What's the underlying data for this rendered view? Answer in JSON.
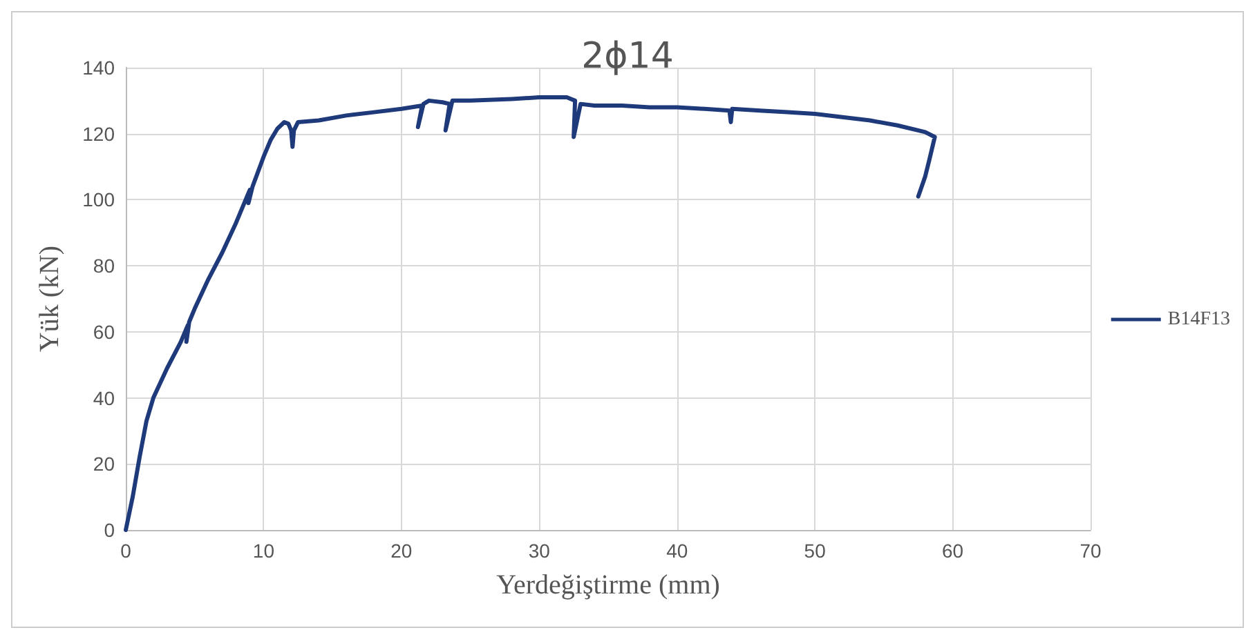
{
  "chart_data": {
    "type": "line",
    "title": "2ϕ14",
    "xlabel": "Yerdeğiştirme (mm)",
    "ylabel": "Yük (kN)",
    "xlim": [
      0,
      70
    ],
    "xticks": [
      0,
      10,
      20,
      30,
      40,
      50,
      60,
      70
    ],
    "ylim": [
      0,
      140
    ],
    "yticks": [
      0,
      20,
      40,
      60,
      80,
      100,
      120,
      140
    ],
    "grid": true,
    "legend": "right",
    "marker": "none",
    "line_style": "solid",
    "series": [
      {
        "name": "B14F13",
        "color": "#1f3a7a",
        "x": [
          0,
          0.5,
          1,
          1.5,
          2,
          3,
          4,
          4.5,
          4.4,
          4.6,
          5,
          6,
          7,
          8,
          9,
          8.9,
          9.2,
          10,
          10.5,
          11,
          11.5,
          11.8,
          12,
          12.1,
          12.2,
          12.5,
          14,
          16,
          18,
          20,
          21.5,
          21.2,
          21.6,
          22,
          23,
          23.5,
          23.2,
          23.7,
          25,
          28,
          30,
          32,
          32.6,
          32.5,
          33,
          34,
          36,
          38,
          40,
          42,
          43.8,
          43.9,
          44,
          46,
          48,
          50,
          52,
          54,
          56,
          58,
          58.7,
          58.3,
          58,
          57.5
        ],
        "values": [
          0,
          10,
          22,
          33,
          40,
          49,
          57,
          62,
          57,
          63,
          67,
          76,
          84,
          93,
          103,
          99,
          104,
          113,
          118,
          121.5,
          123.5,
          123,
          121,
          116,
          121,
          123.5,
          124,
          125.5,
          126.5,
          127.5,
          128.5,
          122,
          129,
          130,
          129.5,
          129,
          121,
          130,
          130,
          130.5,
          131,
          131,
          130,
          119,
          129,
          128.5,
          128.5,
          128,
          128,
          127.5,
          127,
          123.5,
          127.5,
          127,
          126.5,
          126,
          125,
          124,
          122.5,
          120.5,
          119,
          112,
          107,
          101
        ]
      }
    ]
  }
}
